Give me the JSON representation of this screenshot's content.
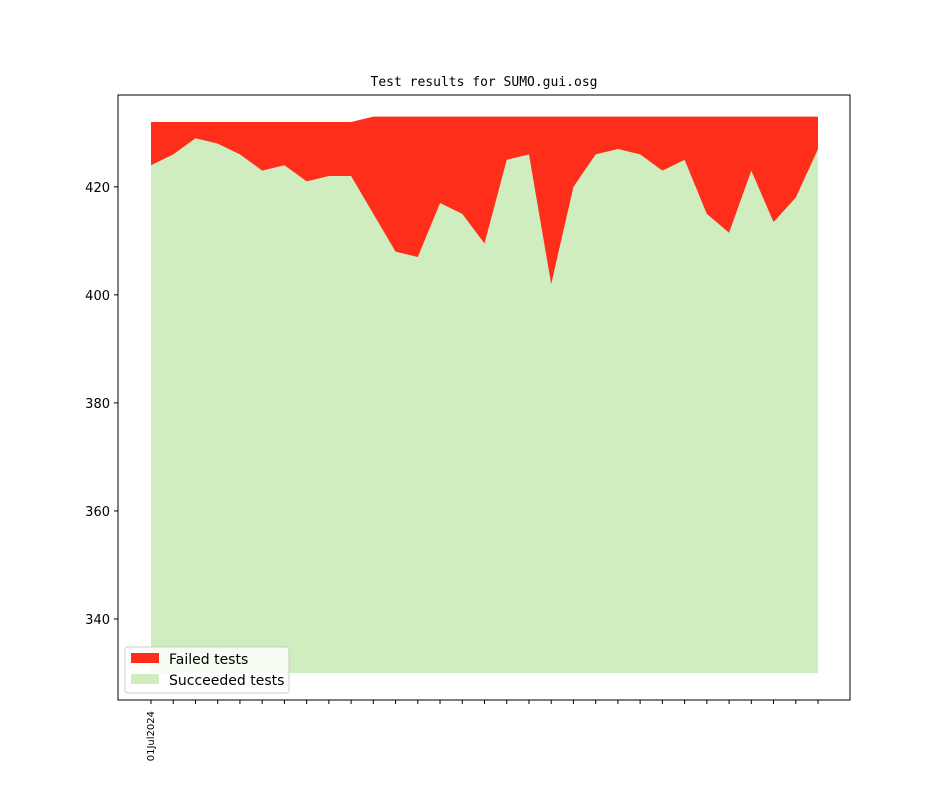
{
  "chart_data": {
    "type": "area",
    "title": "Test results for SUMO.gui.osg",
    "xlabel": "",
    "ylabel": "",
    "x_tick_labels": [
      "01Jul2024"
    ],
    "x_tick_count": 31,
    "ylim": [
      325,
      437
    ],
    "yticks": [
      340,
      360,
      380,
      400,
      420
    ],
    "baseline": 330,
    "legend_position": "lower-left",
    "grid": false,
    "series": [
      {
        "name": "Failed tests",
        "color": "#ff2e1a",
        "stacked_top_values": [
          432,
          432,
          432,
          432,
          432,
          432,
          432,
          432,
          432,
          432,
          433,
          433,
          433,
          433,
          433,
          433,
          433,
          433,
          433,
          433,
          433,
          433,
          433,
          433,
          433,
          433,
          433,
          433,
          433,
          433,
          433
        ]
      },
      {
        "name": "Succeeded tests",
        "color": "#cfedbf",
        "values": [
          424,
          426,
          429,
          428,
          426,
          423,
          424,
          421,
          422,
          422,
          415,
          408,
          407,
          417,
          415,
          409.5,
          425,
          426,
          402,
          420,
          426,
          427,
          426,
          423,
          425,
          415,
          411.5,
          423,
          413.5,
          418,
          427
        ]
      }
    ]
  }
}
